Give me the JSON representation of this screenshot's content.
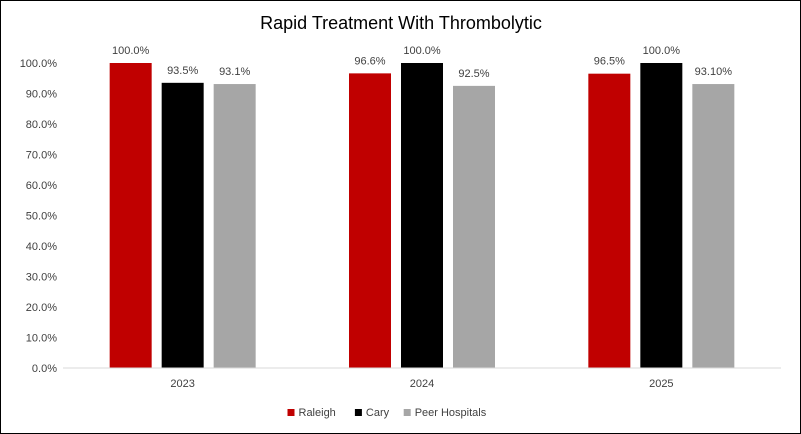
{
  "chart_data": {
    "type": "bar",
    "title": "Rapid Treatment With Thrombolytic",
    "xlabel": "",
    "ylabel": "",
    "categories": [
      "2023",
      "2024",
      "2025"
    ],
    "ylim": [
      0,
      100
    ],
    "y_ticks": [
      "0.0%",
      "10.0%",
      "20.0%",
      "30.0%",
      "40.0%",
      "50.0%",
      "60.0%",
      "70.0%",
      "80.0%",
      "90.0%",
      "100.0%"
    ],
    "grid": false,
    "legend_position": "bottom",
    "series": [
      {
        "name": "Raleigh",
        "color": "#C00000",
        "values": [
          100.0,
          96.6,
          96.5
        ],
        "labels": [
          "100.0%",
          "96.6%",
          "96.5%"
        ]
      },
      {
        "name": "Cary",
        "color": "#000000",
        "values": [
          93.5,
          100.0,
          100.0
        ],
        "labels": [
          "93.5%",
          "100.0%",
          "100.0%"
        ]
      },
      {
        "name": "Peer Hospitals",
        "color": "#A6A6A6",
        "values": [
          93.1,
          92.5,
          93.1
        ],
        "labels": [
          "93.1%",
          "92.5%",
          "93.10%"
        ]
      }
    ]
  }
}
